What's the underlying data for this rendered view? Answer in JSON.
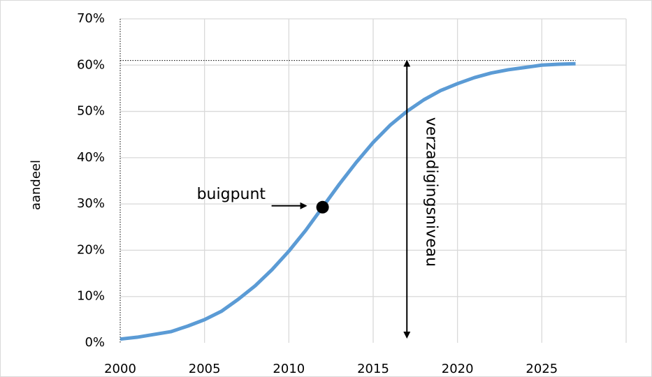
{
  "chart_data": {
    "type": "line",
    "y_label": "aandeel",
    "x": [
      2000,
      2001,
      2002,
      2003,
      2004,
      2005,
      2006,
      2007,
      2008,
      2009,
      2010,
      2011,
      2012,
      2013,
      2014,
      2015,
      2016,
      2017,
      2018,
      2019,
      2020,
      2021,
      2022,
      2023,
      2024,
      2025,
      2026,
      2027
    ],
    "series": [
      {
        "color": "#5b9bd5",
        "values": [
          0.8,
          1.2,
          1.8,
          2.4,
          3.6,
          5,
          6.8,
          9.4,
          12.3,
          15.8,
          19.8,
          24.3,
          29.3,
          34.3,
          39,
          43.3,
          47,
          50,
          52.5,
          54.5,
          56,
          57.3,
          58.3,
          59,
          59.5,
          60,
          60.2,
          60.3
        ]
      }
    ],
    "xlim": [
      2000,
      2030
    ],
    "xticks": [
      2000,
      2005,
      2010,
      2015,
      2020,
      2025
    ],
    "ylim": [
      0,
      70
    ],
    "yticks": [
      {
        "value": 0,
        "label": "0%"
      },
      {
        "value": 10,
        "label": "10%"
      },
      {
        "value": 20,
        "label": "20%"
      },
      {
        "value": 30,
        "label": "30%"
      },
      {
        "value": 40,
        "label": "40%"
      },
      {
        "value": 50,
        "label": "50%"
      },
      {
        "value": 60,
        "label": "60%"
      },
      {
        "value": 70,
        "label": "70%"
      }
    ],
    "grid": true,
    "annotations": [
      {
        "text": "buigpunt",
        "x": 2012,
        "y": 29.3
      },
      {
        "text": "verzadigingsniveau",
        "x": 2017,
        "y": 61
      }
    ]
  }
}
